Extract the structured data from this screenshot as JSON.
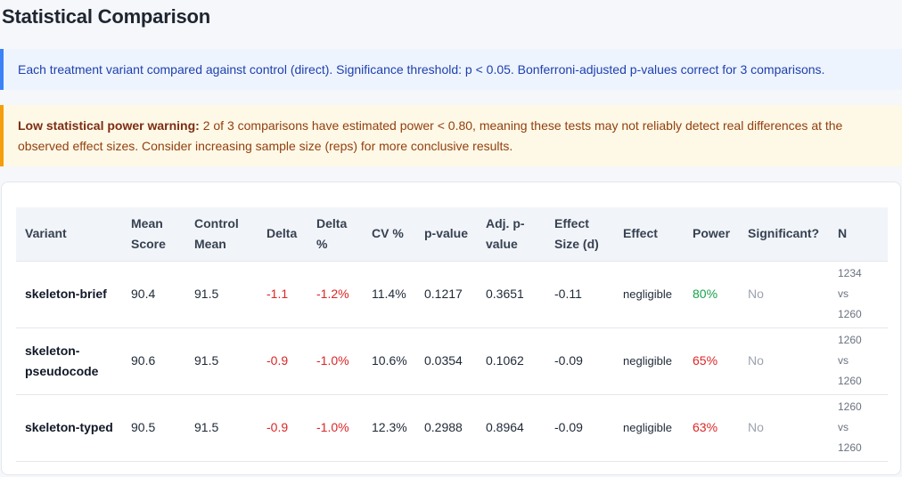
{
  "page": {
    "title": "Statistical Comparison"
  },
  "info": {
    "text": "Each treatment variant compared against control (direct). Significance threshold: p < 0.05. Bonferroni-adjusted p-values correct for 3 comparisons."
  },
  "warning": {
    "lead": "Low statistical power warning:",
    "text": " 2 of 3 comparisons have estimated power < 0.80, meaning these tests may not reliably detect real differences at the observed effect sizes. Consider increasing sample size (reps) for more conclusive results."
  },
  "colors": {
    "info_accent": "#3b82f6",
    "warning_accent": "#f59e0b",
    "negative": "#dc2626",
    "power_good": "#16a34a",
    "power_bad": "#dc2626"
  },
  "table": {
    "headers": {
      "variant": "Variant",
      "mean_score": "Mean Score",
      "control_mean": "Control Mean",
      "delta": "Delta",
      "delta_pct": "Delta %",
      "cv_pct": "CV %",
      "p_value": "p-value",
      "adj_p_value": "Adj. p-value",
      "effect_size": "Effect Size (d)",
      "effect": "Effect",
      "power": "Power",
      "significant": "Significant?",
      "n": "N"
    },
    "rows": [
      {
        "variant": "skeleton-brief",
        "mean_score": "90.4",
        "control_mean": "91.5",
        "delta": "-1.1",
        "delta_pct": "-1.2%",
        "cv_pct": "11.4%",
        "p_value": "0.1217",
        "adj_p_value": "0.3651",
        "effect_size": "-0.11",
        "effect": "negligible",
        "power": "80%",
        "significant": "No",
        "n_treatment": "1234",
        "n_vs": "vs",
        "n_control": "1260"
      },
      {
        "variant": "skeleton-pseudocode",
        "mean_score": "90.6",
        "control_mean": "91.5",
        "delta": "-0.9",
        "delta_pct": "-1.0%",
        "cv_pct": "10.6%",
        "p_value": "0.0354",
        "adj_p_value": "0.1062",
        "effect_size": "-0.09",
        "effect": "negligible",
        "power": "65%",
        "significant": "No",
        "n_treatment": "1260",
        "n_vs": "vs",
        "n_control": "1260"
      },
      {
        "variant": "skeleton-typed",
        "mean_score": "90.5",
        "control_mean": "91.5",
        "delta": "-0.9",
        "delta_pct": "-1.0%",
        "cv_pct": "12.3%",
        "p_value": "0.2988",
        "adj_p_value": "0.8964",
        "effect_size": "-0.09",
        "effect": "negligible",
        "power": "63%",
        "significant": "No",
        "n_treatment": "1260",
        "n_vs": "vs",
        "n_control": "1260"
      }
    ]
  }
}
